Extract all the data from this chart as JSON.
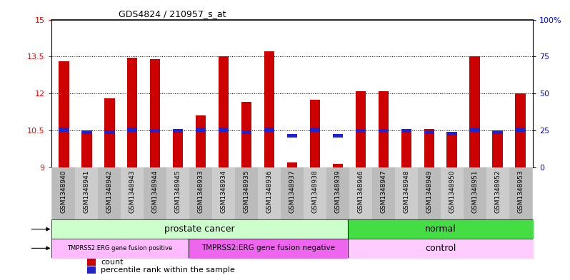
{
  "title": "GDS4824 / 210957_s_at",
  "samples": [
    "GSM1348940",
    "GSM1348941",
    "GSM1348942",
    "GSM1348943",
    "GSM1348944",
    "GSM1348945",
    "GSM1348933",
    "GSM1348934",
    "GSM1348935",
    "GSM1348936",
    "GSM1348937",
    "GSM1348938",
    "GSM1348939",
    "GSM1348946",
    "GSM1348947",
    "GSM1348948",
    "GSM1348949",
    "GSM1348950",
    "GSM1348951",
    "GSM1348952",
    "GSM1348953"
  ],
  "bar_heights": [
    13.3,
    10.35,
    11.8,
    13.45,
    13.4,
    10.55,
    11.1,
    13.5,
    11.65,
    13.7,
    9.2,
    11.75,
    9.15,
    12.1,
    12.1,
    10.45,
    10.55,
    10.35,
    13.5,
    10.35,
    12.0
  ],
  "blue_markers": [
    10.45,
    10.35,
    10.35,
    10.45,
    10.4,
    10.4,
    10.45,
    10.45,
    10.35,
    10.45,
    10.2,
    10.45,
    10.2,
    10.4,
    10.4,
    10.4,
    10.35,
    10.3,
    10.45,
    10.35,
    10.45
  ],
  "ymin": 9,
  "ymax": 15,
  "yticks": [
    9,
    10.5,
    12,
    13.5,
    15
  ],
  "right_yticks_pct": [
    0,
    25,
    50,
    75,
    100
  ],
  "right_yticklabels": [
    "0",
    "25",
    "50",
    "75",
    "100%"
  ],
  "bar_color": "#cc0000",
  "blue_color": "#2222cc",
  "disease_state_pc_color": "#ccffcc",
  "disease_state_n_color": "#44dd44",
  "geno_pos_color": "#ffbbff",
  "geno_neg_color": "#ee66ee",
  "geno_ctrl_color": "#ffccff",
  "xtick_bg_color": "#cccccc",
  "legend_count_color": "#cc0000",
  "legend_pct_color": "#2222cc"
}
